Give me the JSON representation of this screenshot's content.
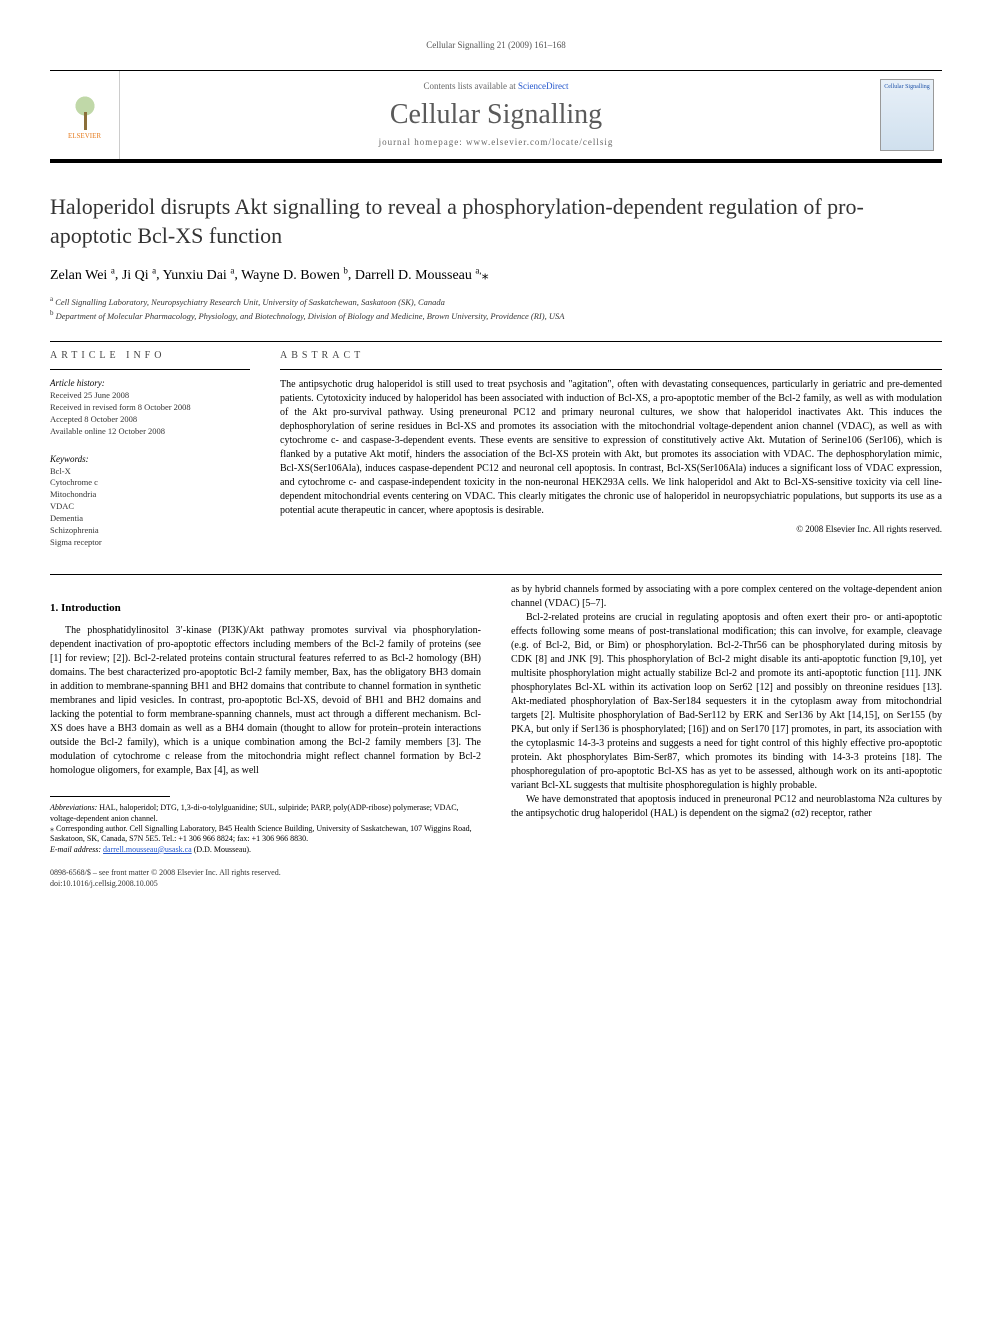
{
  "page_header": "Cellular Signalling 21 (2009) 161–168",
  "journal_box": {
    "contents_prefix": "Contents lists available at ",
    "contents_link": "ScienceDirect",
    "journal_title": "Cellular Signalling",
    "homepage": "journal homepage: www.elsevier.com/locate/cellsig",
    "publisher": "ELSEVIER",
    "cover_label": "Cellular Signalling"
  },
  "title": "Haloperidol disrupts Akt signalling to reveal a phosphorylation-dependent regulation of pro-apoptotic Bcl-XS function",
  "authors": [
    {
      "name": "Zelan Wei",
      "aff": "a"
    },
    {
      "name": "Ji Qi",
      "aff": "a"
    },
    {
      "name": "Yunxiu Dai",
      "aff": "a"
    },
    {
      "name": "Wayne D. Bowen",
      "aff": "b"
    },
    {
      "name": "Darrell D. Mousseau",
      "aff": "a,",
      "star": true
    }
  ],
  "affiliations": [
    {
      "sup": "a",
      "text": "Cell Signalling Laboratory, Neuropsychiatry Research Unit, University of Saskatchewan, Saskatoon (SK), Canada"
    },
    {
      "sup": "b",
      "text": "Department of Molecular Pharmacology, Physiology, and Biotechnology, Division of Biology and Medicine, Brown University, Providence (RI), USA"
    }
  ],
  "article_info": {
    "heading": "article info",
    "history_head": "Article history:",
    "history": [
      "Received 25 June 2008",
      "Received in revised form 8 October 2008",
      "Accepted 8 October 2008",
      "Available online 12 October 2008"
    ],
    "keywords_head": "Keywords:",
    "keywords": [
      "Bcl-X",
      "Cytochrome c",
      "Mitochondria",
      "VDAC",
      "Dementia",
      "Schizophrenia",
      "Sigma receptor"
    ]
  },
  "abstract": {
    "heading": "abstract",
    "text": "The antipsychotic drug haloperidol is still used to treat psychosis and \"agitation\", often with devastating consequences, particularly in geriatric and pre-demented patients. Cytotoxicity induced by haloperidol has been associated with induction of Bcl-XS, a pro-apoptotic member of the Bcl-2 family, as well as with modulation of the Akt pro-survival pathway. Using preneuronal PC12 and primary neuronal cultures, we show that haloperidol inactivates Akt. This induces the dephosphorylation of serine residues in Bcl-XS and promotes its association with the mitochondrial voltage-dependent anion channel (VDAC), as well as with cytochrome c- and caspase-3-dependent events. These events are sensitive to expression of constitutively active Akt. Mutation of Serine106 (Ser106), which is flanked by a putative Akt motif, hinders the association of the Bcl-XS protein with Akt, but promotes its association with VDAC. The dephosphorylation mimic, Bcl-XS(Ser106Ala), induces caspase-dependent PC12 and neuronal cell apoptosis. In contrast, Bcl-XS(Ser106Ala) induces a significant loss of VDAC expression, and cytochrome c- and caspase-independent toxicity in the non-neuronal HEK293A cells. We link haloperidol and Akt to Bcl-XS-sensitive toxicity via cell line-dependent mitochondrial events centering on VDAC. This clearly mitigates the chronic use of haloperidol in neuropsychiatric populations, but supports its use as a potential acute therapeutic in cancer, where apoptosis is desirable.",
    "copyright": "© 2008 Elsevier Inc. All rights reserved."
  },
  "body": {
    "section1_heading": "1. Introduction",
    "col1_p1": "The phosphatidylinositol 3′-kinase (PI3K)/Akt pathway promotes survival via phosphorylation-dependent inactivation of pro-apoptotic effectors including members of the Bcl-2 family of proteins (see [1] for review; [2]). Bcl-2-related proteins contain structural features referred to as Bcl-2 homology (BH) domains. The best characterized pro-apoptotic Bcl-2 family member, Bax, has the obligatory BH3 domain in addition to membrane-spanning BH1 and BH2 domains that contribute to channel formation in synthetic membranes and lipid vesicles. In contrast, pro-apoptotic Bcl-XS, devoid of BH1 and BH2 domains and lacking the potential to form membrane-spanning channels, must act through a different mechanism. Bcl-XS does have a BH3 domain as well as a BH4 domain (thought to allow for protein–protein interactions outside the Bcl-2 family), which is a unique combination among the Bcl-2 family members [3]. The modulation of cytochrome c release from the mitochondria might reflect channel formation by Bcl-2 homologue oligomers, for example, Bax [4], as well",
    "col2_p1": "as by hybrid channels formed by associating with a pore complex centered on the voltage-dependent anion channel (VDAC) [5–7].",
    "col2_p2": "Bcl-2-related proteins are crucial in regulating apoptosis and often exert their pro- or anti-apoptotic effects following some means of post-translational modification; this can involve, for example, cleavage (e.g. of Bcl-2, Bid, or Bim) or phosphorylation. Bcl-2-Thr56 can be phosphorylated during mitosis by CDK [8] and JNK [9]. This phosphorylation of Bcl-2 might disable its anti-apoptotic function [9,10], yet multisite phosphorylation might actually stabilize Bcl-2 and promote its anti-apoptotic function [11]. JNK phosphorylates Bcl-XL within its activation loop on Ser62 [12] and possibly on threonine residues [13]. Akt-mediated phosphorylation of Bax-Ser184 sequesters it in the cytoplasm away from mitochondrial targets [2]. Multisite phosphorylation of Bad-Ser112 by ERK and Ser136 by Akt [14,15], on Ser155 (by PKA, but only if Ser136 is phosphorylated; [16]) and on Ser170 [17] promotes, in part, its association with the cytoplasmic 14-3-3 proteins and suggests a need for tight control of this highly effective pro-apoptotic protein. Akt phosphorylates Bim-Ser87, which promotes its binding with 14-3-3 proteins [18]. The phosphoregulation of pro-apoptotic Bcl-XS has as yet to be assessed, although work on its anti-apoptotic variant Bcl-XL suggests that multisite phosphoregulation is highly probable.",
    "col2_p3": "We have demonstrated that apoptosis induced in preneuronal PC12 and neuroblastoma N2a cultures by the antipsychotic drug haloperidol (HAL) is dependent on the sigma2 (σ2) receptor, rather"
  },
  "footnotes": {
    "abbrev_label": "Abbreviations:",
    "abbrev": "HAL, haloperidol; DTG, 1,3-di-o-tolylguanidine; SUL, sulpiride; PARP, poly(ADP-ribose) polymerase; VDAC, voltage-dependent anion channel.",
    "corr_label": "⁎ Corresponding author.",
    "corr": "Cell Signalling Laboratory, B45 Health Science Building, University of Saskatchewan, 107 Wiggins Road, Saskatoon, SK, Canada, S7N 5E5. Tel.: +1 306 966 8824; fax: +1 306 966 8830.",
    "email_label": "E-mail address:",
    "email": "darrell.mousseau@usask.ca",
    "email_who": "(D.D. Mousseau)."
  },
  "footer": {
    "line1": "0898-6568/$ – see front matter © 2008 Elsevier Inc. All rights reserved.",
    "line2": "doi:10.1016/j.cellsig.2008.10.005"
  },
  "colors": {
    "link": "#2255cc",
    "text": "#000000",
    "muted": "#666666",
    "rule": "#000000"
  }
}
